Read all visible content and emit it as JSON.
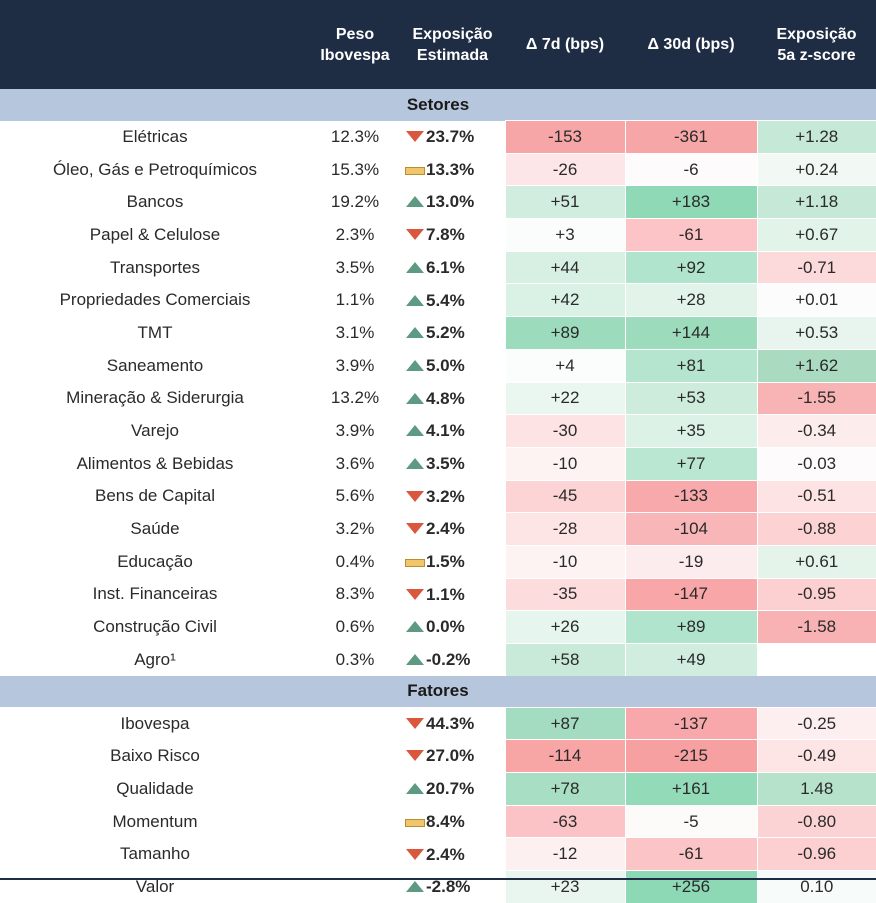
{
  "headers": {
    "name": "",
    "peso": "Peso Ibovespa",
    "exposicao": "Exposição Estimada",
    "d7": "Δ 7d (bps)",
    "d30": "Δ 30d (bps)",
    "z": "Exposição 5a z-score"
  },
  "sections": [
    {
      "title": "Setores",
      "rows": [
        {
          "name": "Elétricas",
          "peso": "12.3%",
          "trend": "down",
          "exp": "23.7%",
          "d7": "-153",
          "d30": "-361",
          "z": "+1.28",
          "c7": "#f6a6a6",
          "c30": "#f6a6a6",
          "cz": "#c6e8d6"
        },
        {
          "name": "Óleo, Gás e Petroquímicos",
          "peso": "15.3%",
          "trend": "flat",
          "exp": "13.3%",
          "d7": "-26",
          "d30": "-6",
          "z": "+0.24",
          "c7": "#fde6e7",
          "c30": "#fdfbfc",
          "cz": "#f2f9f5"
        },
        {
          "name": "Bancos",
          "peso": "19.2%",
          "trend": "up",
          "exp": "13.0%",
          "d7": "+51",
          "d30": "+183",
          "z": "+1.18",
          "c7": "#d0ede0",
          "c30": "#8fd9b6",
          "cz": "#c6e8d6"
        },
        {
          "name": "Papel & Celulose",
          "peso": "2.3%",
          "trend": "down",
          "exp": "7.8%",
          "d7": "+3",
          "d30": "-61",
          "z": "+0.67",
          "c7": "#fafdfb",
          "c30": "#fcc4c6",
          "cz": "#e2f3ea"
        },
        {
          "name": "Transportes",
          "peso": "3.5%",
          "trend": "up",
          "exp": "6.1%",
          "d7": "+44",
          "d30": "+92",
          "z": "-0.71",
          "c7": "#d8f0e4",
          "c30": "#b0e4cc",
          "cz": "#fcdadb"
        },
        {
          "name": "Propriedades Comerciais",
          "peso": "1.1%",
          "trend": "up",
          "exp": "5.4%",
          "d7": "+42",
          "d30": "+28",
          "z": "+0.01",
          "c7": "#daf1e5",
          "c30": "#e2f4ea",
          "cz": "#fdfcfd"
        },
        {
          "name": "TMT",
          "peso": "3.1%",
          "trend": "up",
          "exp": "5.2%",
          "d7": "+89",
          "d30": "+144",
          "z": "+0.53",
          "c7": "#9ddbbd",
          "c30": "#9ddbbd",
          "cz": "#e8f5ee"
        },
        {
          "name": "Saneamento",
          "peso": "3.9%",
          "trend": "up",
          "exp": "5.0%",
          "d7": "+4",
          "d30": "+81",
          "z": "+1.62",
          "c7": "#fafdfb",
          "c30": "#b5e5ce",
          "cz": "#aadbc1"
        },
        {
          "name": "Mineração & Siderurgia",
          "peso": "13.2%",
          "trend": "up",
          "exp": "4.8%",
          "d7": "+22",
          "d30": "+53",
          "z": "-1.55",
          "c7": "#eaf7f0",
          "c30": "#cdecdc",
          "cz": "#f8b3b4"
        },
        {
          "name": "Varejo",
          "peso": "3.9%",
          "trend": "up",
          "exp": "4.1%",
          "d7": "-30",
          "d30": "+35",
          "z": "-0.34",
          "c7": "#fde3e4",
          "c30": "#ddf2e7",
          "cz": "#fdecec"
        },
        {
          "name": "Alimentos & Bebidas",
          "peso": "3.6%",
          "trend": "up",
          "exp": "3.5%",
          "d7": "-10",
          "d30": "+77",
          "z": "-0.03",
          "c7": "#fdf3f3",
          "c30": "#b9e7d1",
          "cz": "#fdfbfb"
        },
        {
          "name": "Bens de Capital",
          "peso": "5.6%",
          "trend": "down",
          "exp": "3.2%",
          "d7": "-45",
          "d30": "-133",
          "z": "-0.51",
          "c7": "#fcd4d5",
          "c30": "#f8a9ab",
          "cz": "#fde3e4"
        },
        {
          "name": "Saúde",
          "peso": "3.2%",
          "trend": "down",
          "exp": "2.4%",
          "d7": "-28",
          "d30": "-104",
          "z": "-0.88",
          "c7": "#fde4e5",
          "c30": "#f9b6b8",
          "cz": "#fcd2d3"
        },
        {
          "name": "Educação",
          "peso": "0.4%",
          "trend": "flat",
          "exp": "1.5%",
          "d7": "-10",
          "d30": "-19",
          "z": "+0.61",
          "c7": "#fdf3f3",
          "c30": "#fdeced",
          "cz": "#e4f4eb"
        },
        {
          "name": "Inst. Financeiras",
          "peso": "8.3%",
          "trend": "down",
          "exp": "1.1%",
          "d7": "-35",
          "d30": "-147",
          "z": "-0.95",
          "c7": "#fcdcdd",
          "c30": "#f8a6a8",
          "cz": "#fccfd0"
        },
        {
          "name": "Construção Civil",
          "peso": "0.6%",
          "trend": "up",
          "exp": "0.0%",
          "d7": "+26",
          "d30": "+89",
          "z": "-1.58",
          "c7": "#e6f5ed",
          "c30": "#b1e4cc",
          "cz": "#f8b2b3"
        },
        {
          "name": "Agro¹",
          "peso": "0.3%",
          "trend": "up",
          "exp": "-0.2%",
          "d7": "+58",
          "d30": "+49",
          "z": "",
          "c7": "#c9ead9",
          "c30": "#d0ede0",
          "cz": "#ffffff"
        }
      ]
    },
    {
      "title": "Fatores",
      "rows": [
        {
          "name": "Ibovespa",
          "peso": "",
          "trend": "down",
          "exp": "44.3%",
          "d7": "+87",
          "d30": "-137",
          "z": "-0.25",
          "c7": "#a3dcc1",
          "c30": "#f8a8aa",
          "cz": "#fdeff0"
        },
        {
          "name": "Baixo Risco",
          "peso": "",
          "trend": "down",
          "exp": "27.0%",
          "d7": "-114",
          "d30": "-215",
          "z": "-0.49",
          "c7": "#f8a5a6",
          "c30": "#f6a0a2",
          "cz": "#fde4e5"
        },
        {
          "name": "Qualidade",
          "peso": "",
          "trend": "up",
          "exp": "20.7%",
          "d7": "+78",
          "d30": "+161",
          "z": "1.48",
          "c7": "#a8dec4",
          "c30": "#93dab8",
          "cz": "#b6e2cc"
        },
        {
          "name": "Momentum",
          "peso": "",
          "trend": "flat",
          "exp": "8.4%",
          "d7": "-63",
          "d30": "-5",
          "z": "-0.80",
          "c7": "#fbc3c5",
          "c30": "#fdfafa",
          "cz": "#fcd3d4"
        },
        {
          "name": "Tamanho",
          "peso": "",
          "trend": "down",
          "exp": "2.4%",
          "d7": "-12",
          "d30": "-61",
          "z": "-0.96",
          "c7": "#fdf0f0",
          "c30": "#fbc4c6",
          "cz": "#fccfd0"
        },
        {
          "name": "Valor",
          "peso": "",
          "trend": "up",
          "exp": "-2.8%",
          "d7": "+23",
          "d30": "+256",
          "z": "0.10",
          "c7": "#e9f6ef",
          "c30": "#8ed9b5",
          "cz": "#f7fbf9"
        }
      ]
    }
  ]
}
